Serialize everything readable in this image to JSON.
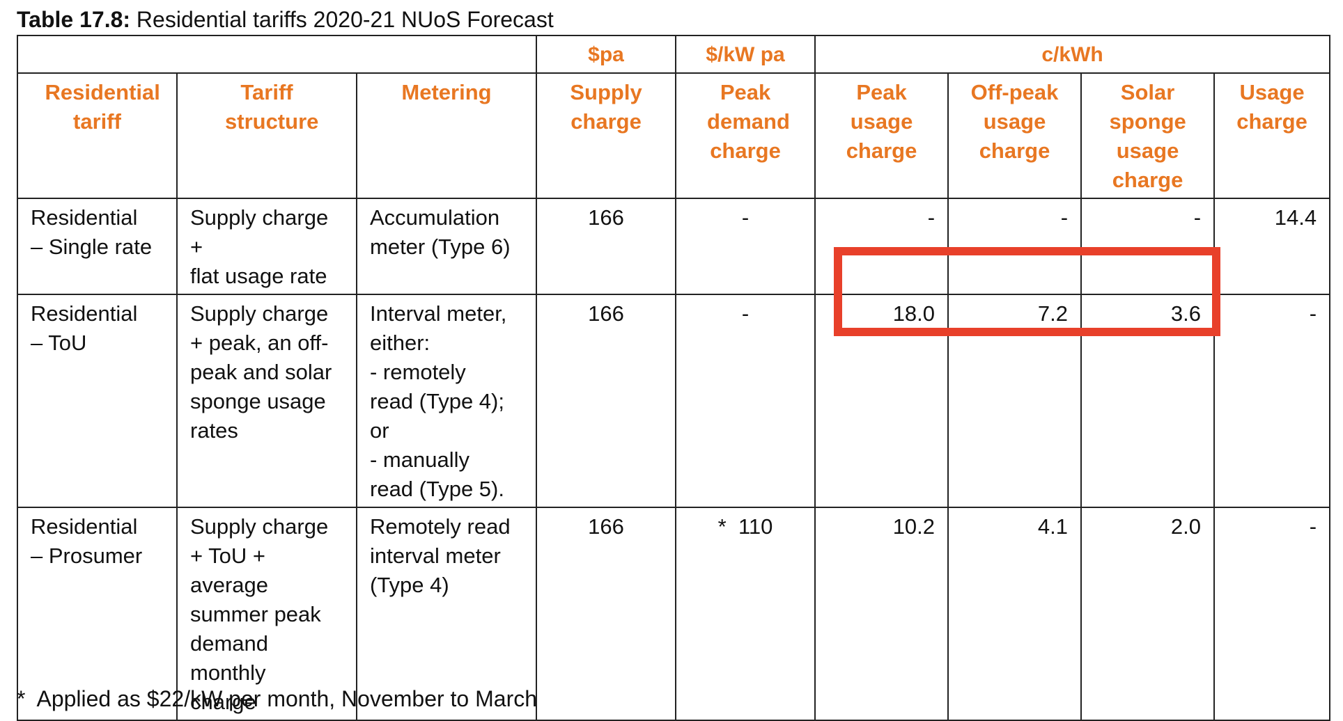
{
  "caption": {
    "label": "Table 17.8:",
    "text": "Residential tariffs 2020-21 NUoS Forecast"
  },
  "units": {
    "pa": "$pa",
    "kw_pa": "$/kW pa",
    "ckwh": "c/kWh"
  },
  "columns": [
    "Residential tariff",
    "Tariff structure",
    "Metering",
    "Supply charge",
    "Peak demand charge",
    "Peak usage charge",
    "Off-peak usage charge",
    "Solar sponge usage charge",
    "Usage charge"
  ],
  "rows": [
    {
      "tariff": "Residential\n– Single rate",
      "structure": "Supply charge\n+\nflat usage rate",
      "metering": "Accumulation\nmeter (Type 6)",
      "supply": "166",
      "peak_demand": "-",
      "peak_usage": "-",
      "offpeak_usage": "-",
      "solar_usage": "-",
      "usage": "14.4"
    },
    {
      "tariff": "Residential\n– ToU",
      "structure": "Supply charge\n+ peak, an off-\npeak and solar\nsponge usage\nrates",
      "metering": "Interval meter,\neither:\n- remotely\nread (Type 4);\nor\n- manually\nread (Type 5).",
      "supply": "166",
      "peak_demand": "-",
      "peak_usage": "18.0",
      "offpeak_usage": "7.2",
      "solar_usage": "3.6",
      "usage": "-"
    },
    {
      "tariff": "Residential\n–  Prosumer",
      "structure": "Supply charge\n+ ToU +\naverage\nsummer peak\ndemand\nmonthly\ncharge",
      "metering": "Remotely read\ninterval meter\n(Type 4)",
      "supply": "166",
      "peak_demand": "*  110",
      "peak_usage": "10.2",
      "offpeak_usage": "4.1",
      "solar_usage": "2.0",
      "usage": "-"
    }
  ],
  "footnote": "*  Applied as $22/kW per month, November to March",
  "colors": {
    "header_orange": "#e87722",
    "highlight_red": "#e8402a"
  }
}
